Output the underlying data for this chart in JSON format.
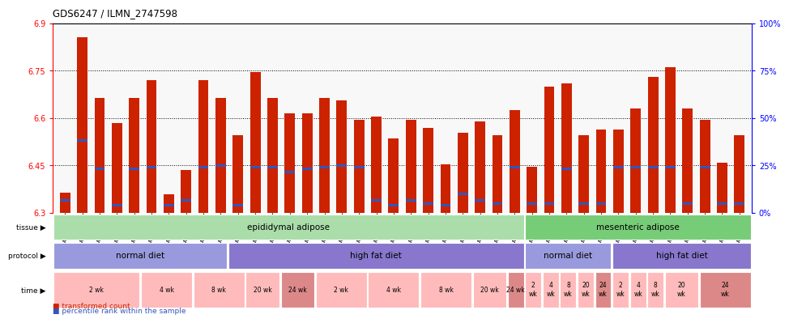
{
  "title": "GDS6247 / ILMN_2747598",
  "samples": [
    "GSM971546",
    "GSM971547",
    "GSM971548",
    "GSM971549",
    "GSM971550",
    "GSM971551",
    "GSM971552",
    "GSM971553",
    "GSM971554",
    "GSM971555",
    "GSM971556",
    "GSM971557",
    "GSM971558",
    "GSM971559",
    "GSM971560",
    "GSM971561",
    "GSM971562",
    "GSM971563",
    "GSM971564",
    "GSM971565",
    "GSM971566",
    "GSM971567",
    "GSM971568",
    "GSM971569",
    "GSM971570",
    "GSM971571",
    "GSM971572",
    "GSM971573",
    "GSM971574",
    "GSM971575",
    "GSM971576",
    "GSM971577",
    "GSM971578",
    "GSM971579",
    "GSM971580",
    "GSM971581",
    "GSM971582",
    "GSM971583",
    "GSM971584",
    "GSM971585"
  ],
  "bar_values": [
    6.365,
    6.855,
    6.665,
    6.585,
    6.665,
    6.72,
    6.36,
    6.435,
    6.72,
    6.665,
    6.545,
    6.745,
    6.665,
    6.615,
    6.615,
    6.665,
    6.655,
    6.595,
    6.605,
    6.535,
    6.595,
    6.57,
    6.455,
    6.555,
    6.59,
    6.545,
    6.625,
    6.445,
    6.7,
    6.71,
    6.545,
    6.565,
    6.565,
    6.63,
    6.73,
    6.76,
    6.63,
    6.595,
    6.46,
    6.545
  ],
  "percentile_values": [
    6.34,
    6.53,
    6.44,
    6.325,
    6.44,
    6.445,
    6.325,
    6.34,
    6.445,
    6.45,
    6.325,
    6.445,
    6.445,
    6.43,
    6.44,
    6.445,
    6.45,
    6.445,
    6.34,
    6.325,
    6.34,
    6.33,
    6.325,
    6.36,
    6.34,
    6.33,
    6.445,
    6.33,
    6.33,
    6.44,
    6.33,
    6.33,
    6.445,
    6.445,
    6.445,
    6.445,
    6.33,
    6.445,
    6.33,
    6.33
  ],
  "ymin": 6.3,
  "ymax": 6.9,
  "yticks": [
    6.3,
    6.45,
    6.6,
    6.75,
    6.9
  ],
  "ytick_labels": [
    "6.3",
    "6.45",
    "6.6",
    "6.75",
    "6.9"
  ],
  "right_yticks": [
    0,
    25,
    50,
    75,
    100
  ],
  "right_ytick_labels": [
    "0%",
    "25%",
    "50%",
    "75%",
    "100%"
  ],
  "bar_color": "#cc2200",
  "percentile_color": "#3355bb",
  "bg_color": "#ffffff",
  "plot_bg": "#f8f8f8",
  "grid_color": "#222222",
  "tissue_groups": [
    {
      "label": "epididymal adipose",
      "start": 0,
      "end": 27,
      "color": "#aaddaa"
    },
    {
      "label": "mesenteric adipose",
      "start": 27,
      "end": 40,
      "color": "#77cc77"
    }
  ],
  "protocol_groups": [
    {
      "label": "normal diet",
      "start": 0,
      "end": 10,
      "color": "#9999dd"
    },
    {
      "label": "high fat diet",
      "start": 10,
      "end": 27,
      "color": "#8877cc"
    },
    {
      "label": "normal diet",
      "start": 27,
      "end": 32,
      "color": "#9999dd"
    },
    {
      "label": "high fat diet",
      "start": 32,
      "end": 40,
      "color": "#8877cc"
    }
  ],
  "time_groups": [
    {
      "label": "2 wk",
      "start": 0,
      "end": 5,
      "color": "#ffbbbb"
    },
    {
      "label": "4 wk",
      "start": 5,
      "end": 8,
      "color": "#ffbbbb"
    },
    {
      "label": "8 wk",
      "start": 8,
      "end": 11,
      "color": "#ffbbbb"
    },
    {
      "label": "20 wk",
      "start": 11,
      "end": 13,
      "color": "#ffbbbb"
    },
    {
      "label": "24 wk",
      "start": 13,
      "end": 15,
      "color": "#dd8888"
    },
    {
      "label": "2 wk",
      "start": 15,
      "end": 18,
      "color": "#ffbbbb"
    },
    {
      "label": "4 wk",
      "start": 18,
      "end": 21,
      "color": "#ffbbbb"
    },
    {
      "label": "8 wk",
      "start": 21,
      "end": 24,
      "color": "#ffbbbb"
    },
    {
      "label": "20 wk",
      "start": 24,
      "end": 26,
      "color": "#ffbbbb"
    },
    {
      "label": "24 wk",
      "start": 26,
      "end": 27,
      "color": "#dd8888"
    },
    {
      "label": "2\nwk",
      "start": 27,
      "end": 28,
      "color": "#ffbbbb"
    },
    {
      "label": "4\nwk",
      "start": 28,
      "end": 29,
      "color": "#ffbbbb"
    },
    {
      "label": "8\nwk",
      "start": 29,
      "end": 30,
      "color": "#ffbbbb"
    },
    {
      "label": "20\nwk",
      "start": 30,
      "end": 31,
      "color": "#ffbbbb"
    },
    {
      "label": "24\nwk",
      "start": 31,
      "end": 32,
      "color": "#dd8888"
    },
    {
      "label": "2\nwk",
      "start": 32,
      "end": 33,
      "color": "#ffbbbb"
    },
    {
      "label": "4\nwk",
      "start": 33,
      "end": 34,
      "color": "#ffbbbb"
    },
    {
      "label": "8\nwk",
      "start": 34,
      "end": 35,
      "color": "#ffbbbb"
    },
    {
      "label": "20\nwk",
      "start": 35,
      "end": 37,
      "color": "#ffbbbb"
    },
    {
      "label": "24\nwk",
      "start": 37,
      "end": 40,
      "color": "#dd8888"
    }
  ],
  "legend_items": [
    {
      "label": "transformed count",
      "color": "#cc2200"
    },
    {
      "label": "percentile rank within the sample",
      "color": "#3355bb"
    }
  ]
}
